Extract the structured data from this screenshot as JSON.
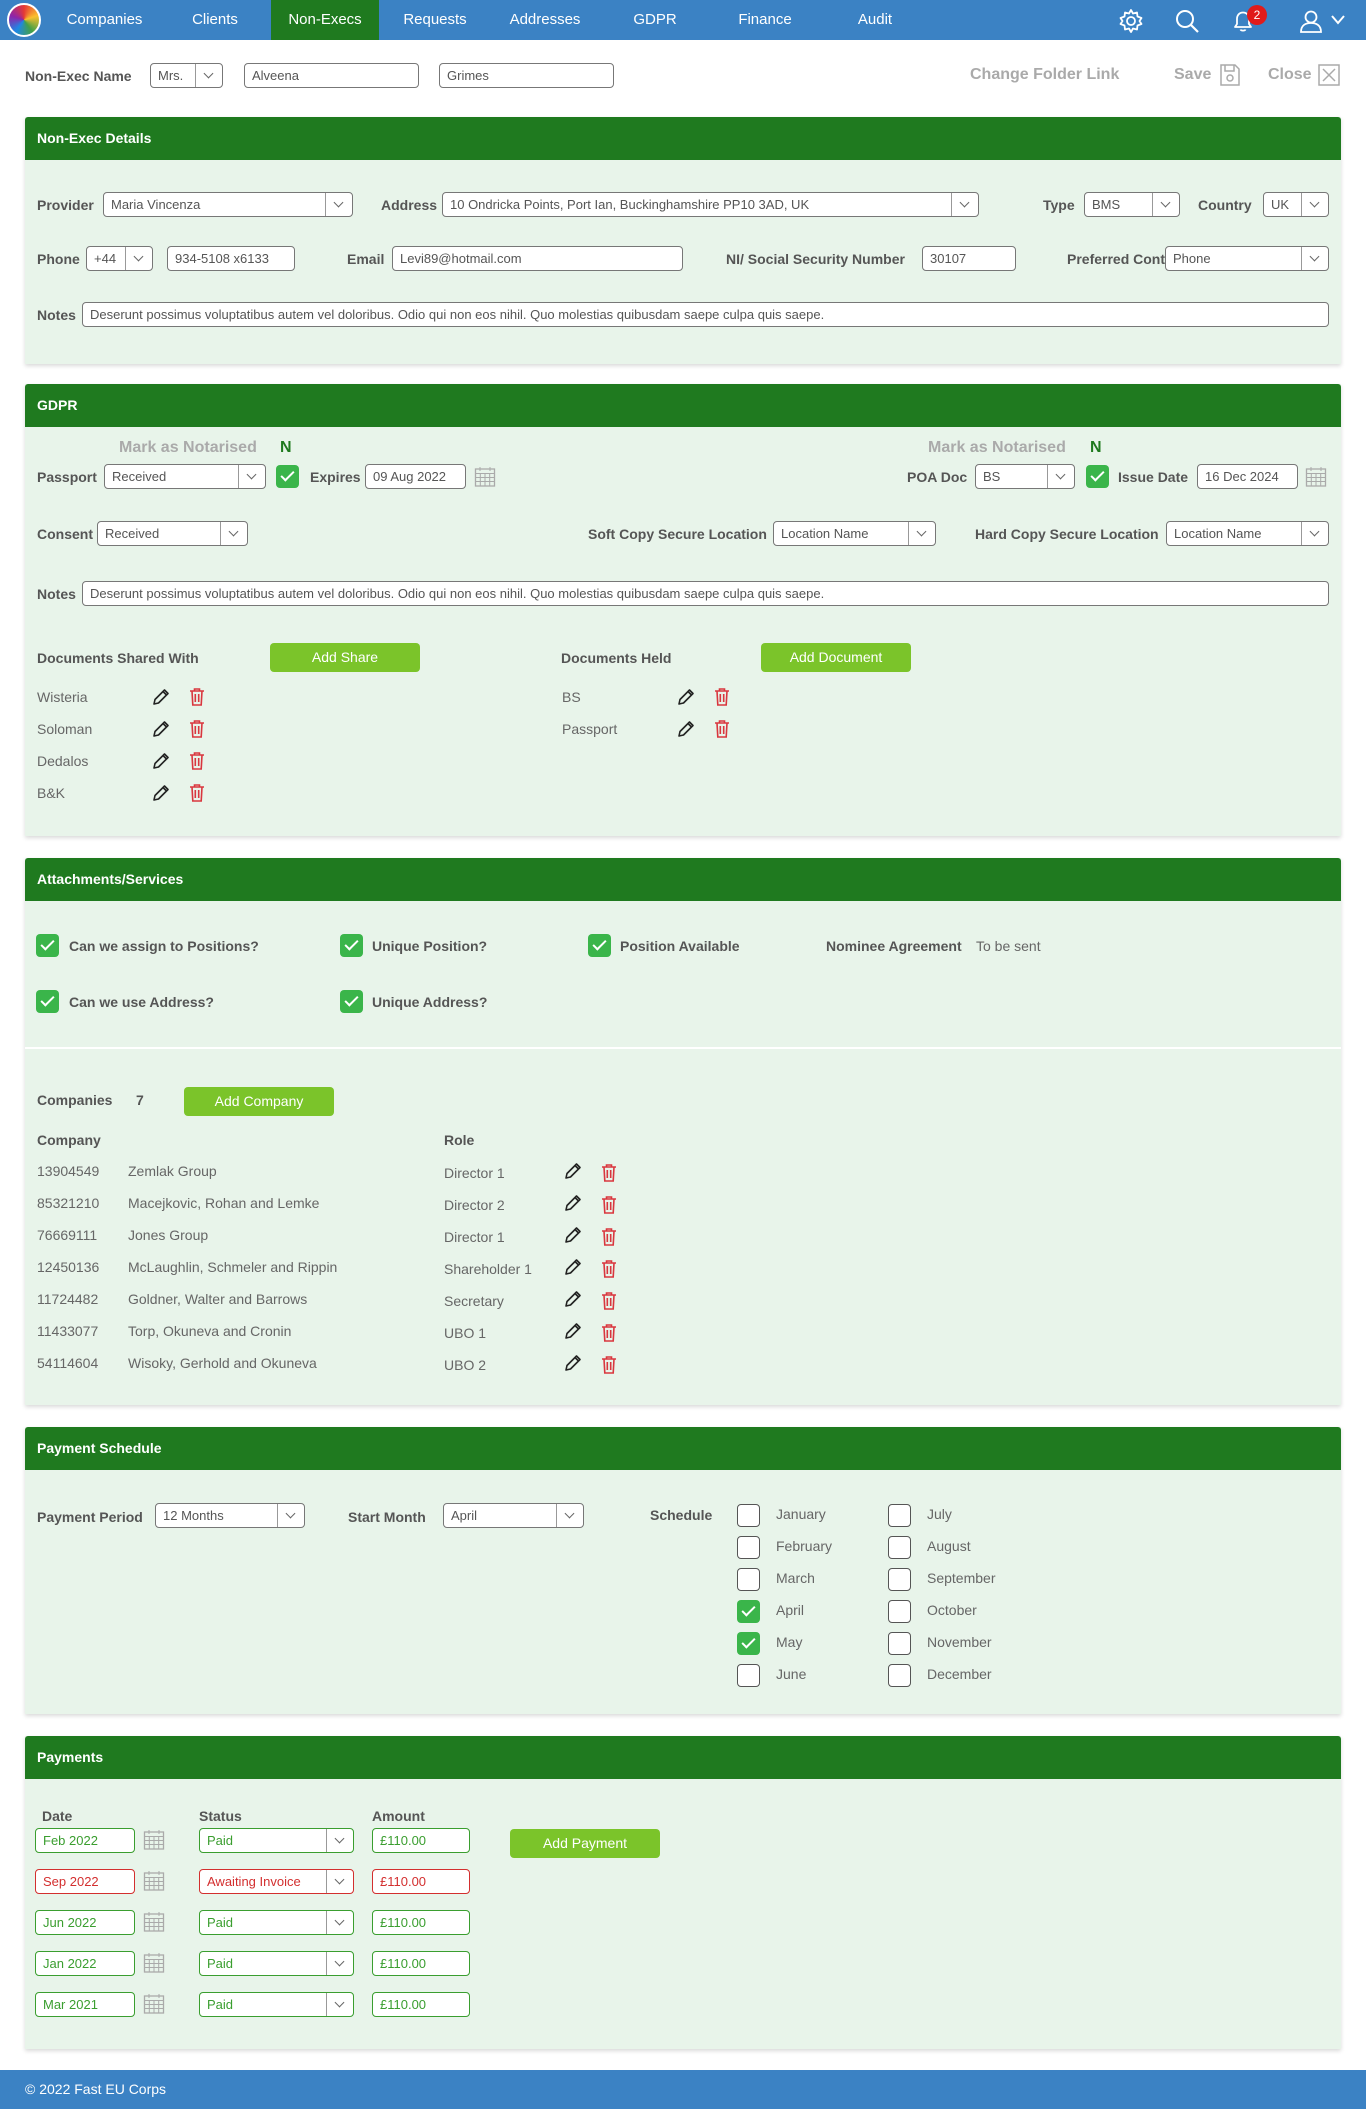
{
  "nav": {
    "items": [
      "Companies",
      "Clients",
      "Non-Execs",
      "Requests",
      "Addresses",
      "GDPR",
      "Finance",
      "Audit"
    ],
    "active": "Non-Execs",
    "notification_count": "2"
  },
  "header": {
    "label": "Non-Exec Name",
    "title": "Mrs.",
    "first_name": "Alveena",
    "last_name": "Grimes",
    "change_folder": "Change Folder Link",
    "save": "Save",
    "close": "Close"
  },
  "details": {
    "title": "Non-Exec Details",
    "provider_label": "Provider",
    "provider": "Maria Vincenza",
    "address_label": "Address",
    "address": "10 Ondricka Points, Port Ian, Buckinghamshire PP10 3AD, UK",
    "type_label": "Type",
    "type": "BMS",
    "country_label": "Country",
    "country": "UK",
    "phone_label": "Phone",
    "phone_code": "+44",
    "phone": "934-5108 x6133",
    "email_label": "Email",
    "email": "Levi89@hotmail.com",
    "ni_label": "NI/ Social Security  Number",
    "ni": "30107",
    "preferred_label": "Preferred Contact",
    "preferred": "Phone",
    "notes_label": "Notes",
    "notes": "Deserunt possimus voluptatibus autem vel doloribus. Odio qui non eos nihil. Quo molestias quibusdam saepe culpa quis saepe."
  },
  "gdpr": {
    "title": "GDPR",
    "notarised_label": "Mark as Notarised",
    "notarised_value": "N",
    "passport_label": "Passport",
    "passport": "Received",
    "expires_label": "Expires",
    "expires": "09 Aug 2022",
    "poa_notarised_label": "Mark as Notarised",
    "poa_notarised_value": "N",
    "poa_label": "POA Doc",
    "poa": "BS",
    "issue_label": "Issue Date",
    "issue": "16 Dec 2024",
    "consent_label": "Consent",
    "consent": "Received",
    "soft_label": "Soft Copy Secure Location",
    "soft": "Location Name",
    "hard_label": "Hard Copy Secure Location",
    "hard": "Location Name",
    "notes_label": "Notes",
    "notes": "Deserunt possimus voluptatibus autem vel doloribus. Odio qui non eos nihil. Quo molestias quibusdam saepe culpa quis saepe.",
    "shared_label": "Documents Shared With",
    "add_share": "Add Share",
    "shared": [
      "Wisteria",
      "Soloman",
      "Dedalos",
      "B&K"
    ],
    "held_label": "Documents Held",
    "add_document": "Add Document",
    "held": [
      "BS",
      "Passport"
    ]
  },
  "attach": {
    "title": "Attachments/Services",
    "assign": "Can we assign to Positions?",
    "unique_position": "Unique Position?",
    "position_available": "Position Available",
    "nominee_label": "Nominee Agreement",
    "nominee": "To be sent",
    "use_address": "Can we use  Address?",
    "unique_address": "Unique Address?",
    "companies_label": "Companies",
    "companies_count": "7",
    "add_company": "Add Company",
    "col_company": "Company",
    "col_role": "Role",
    "companies": [
      {
        "num": "13904549",
        "name": "Zemlak Group",
        "role": "Director 1"
      },
      {
        "num": "85321210",
        "name": "Macejkovic, Rohan and Lemke",
        "role": "Director 2"
      },
      {
        "num": "76669111",
        "name": "Jones Group",
        "role": "Director 1"
      },
      {
        "num": "12450136",
        "name": "McLaughlin, Schmeler and Rippin",
        "role": "Shareholder 1"
      },
      {
        "num": "11724482",
        "name": "Goldner, Walter and Barrows",
        "role": "Secretary"
      },
      {
        "num": "11433077",
        "name": "Torp, Okuneva and Cronin",
        "role": "UBO 1"
      },
      {
        "num": "54114604",
        "name": "Wisoky, Gerhold and Okuneva",
        "role": "UBO 2"
      }
    ]
  },
  "schedule": {
    "title": "Payment Schedule",
    "period_label": "Payment Period",
    "period": "12 Months",
    "start_label": "Start Month",
    "start": "April",
    "schedule_label": "Schedule",
    "months": [
      {
        "name": "January",
        "checked": false
      },
      {
        "name": "February",
        "checked": false
      },
      {
        "name": "March",
        "checked": false
      },
      {
        "name": "April",
        "checked": true
      },
      {
        "name": "May",
        "checked": true
      },
      {
        "name": "June",
        "checked": false
      },
      {
        "name": "July",
        "checked": false
      },
      {
        "name": "August",
        "checked": false
      },
      {
        "name": "September",
        "checked": false
      },
      {
        "name": "October",
        "checked": false
      },
      {
        "name": "November",
        "checked": false
      },
      {
        "name": "December",
        "checked": false
      }
    ]
  },
  "payments": {
    "title": "Payments",
    "col_date": "Date",
    "col_status": "Status",
    "col_amount": "Amount",
    "add_payment": "Add Payment",
    "rows": [
      {
        "date": "Feb 2022",
        "status": "Paid",
        "amount": "£110.00",
        "color": "#3a9e2f"
      },
      {
        "date": "Sep 2022",
        "status": "Awaiting Invoice",
        "amount": "£110.00",
        "color": "#d32f2f"
      },
      {
        "date": "Jun 2022",
        "status": "Paid",
        "amount": "£110.00",
        "color": "#3a9e2f"
      },
      {
        "date": "Jan 2022",
        "status": "Paid",
        "amount": "£110.00",
        "color": "#3a9e2f"
      },
      {
        "date": "Mar 2021",
        "status": "Paid",
        "amount": "£110.00",
        "color": "#3a9e2f"
      }
    ]
  },
  "footer": {
    "text": "© 2022 Fast EU Corps"
  },
  "colors": {
    "nav": "#3b82c4",
    "header_green": "#1f7a1f",
    "panel_bg": "#e8f4ea",
    "button": "#7bc42a",
    "check": "#3ab54a",
    "delete": "#d9363e"
  }
}
